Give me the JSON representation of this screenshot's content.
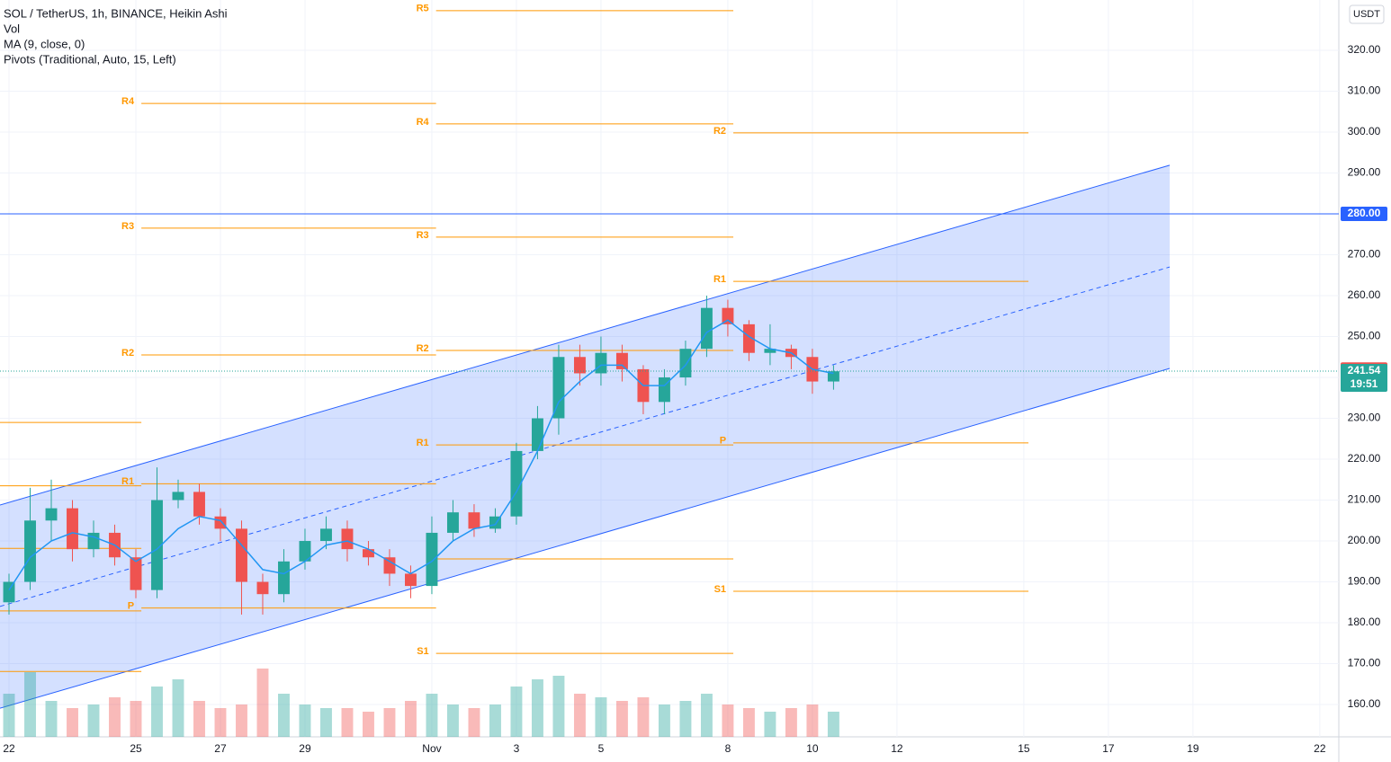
{
  "chart_data": {
    "type": "candlestick",
    "title": "SOL / TetherUS, 1h, BINANCE, Heikin Ashi",
    "indicators": [
      "Vol",
      "MA (9, close, 0)",
      "Pivots (Traditional, Auto, 15, Left)"
    ],
    "y_axis_unit": "USDT",
    "grid": true,
    "up_color": "#26a69a",
    "down_color": "#ef5350",
    "ma_color": "#2196f3",
    "pivot_color": "#ff9800",
    "channel_color": "#2962ff",
    "xlim": [
      -0.213,
      31.45
    ],
    "ylim": [
      152.1,
      332.3
    ],
    "xticks": [
      {
        "value": 0,
        "label": "22"
      },
      {
        "value": 3,
        "label": "25"
      },
      {
        "value": 5,
        "label": "27"
      },
      {
        "value": 7,
        "label": "29"
      },
      {
        "value": 10,
        "label": "Nov"
      },
      {
        "value": 12,
        "label": "3"
      },
      {
        "value": 14,
        "label": "5"
      },
      {
        "value": 17,
        "label": "8"
      },
      {
        "value": 19,
        "label": "10"
      },
      {
        "value": 21,
        "label": "12"
      },
      {
        "value": 24,
        "label": "15"
      },
      {
        "value": 26,
        "label": "17"
      },
      {
        "value": 28,
        "label": "19"
      },
      {
        "value": 31,
        "label": "22"
      }
    ],
    "yticks": [
      {
        "value": 160,
        "label": "160.00"
      },
      {
        "value": 170,
        "label": "170.00"
      },
      {
        "value": 180,
        "label": "180.00"
      },
      {
        "value": 190,
        "label": "190.00"
      },
      {
        "value": 200,
        "label": "200.00"
      },
      {
        "value": 210,
        "label": "210.00"
      },
      {
        "value": 220,
        "label": "220.00"
      },
      {
        "value": 230,
        "label": "230.00"
      },
      {
        "value": 240,
        "label": "240.00"
      },
      {
        "value": 250,
        "label": "250.00"
      },
      {
        "value": 260,
        "label": "260.00"
      },
      {
        "value": 270,
        "label": "270.00"
      },
      {
        "value": 280,
        "label": "280.00"
      },
      {
        "value": 290,
        "label": "290.00"
      },
      {
        "value": 300,
        "label": "300.00"
      },
      {
        "value": 310,
        "label": "310.00"
      },
      {
        "value": 320,
        "label": "320.00"
      }
    ],
    "candles": {
      "x": [
        0,
        0.5,
        1,
        1.5,
        2,
        2.5,
        3,
        3.5,
        4,
        4.5,
        5,
        5.5,
        6,
        6.5,
        7,
        7.5,
        8,
        8.5,
        9,
        9.5,
        10,
        10.5,
        11,
        11.5,
        12,
        12.5,
        13,
        13.5,
        14,
        14.5,
        15,
        15.5,
        16,
        16.5,
        17,
        17.5,
        18,
        18.5,
        19,
        19.5
      ],
      "open": [
        185,
        190,
        205,
        208,
        198,
        202,
        196,
        188,
        210,
        212,
        206,
        203,
        190,
        187,
        195,
        200,
        203,
        198,
        196,
        192,
        189,
        202,
        207,
        203,
        206,
        222,
        230,
        245,
        241,
        246,
        242,
        234,
        240,
        247,
        257,
        253,
        246,
        247,
        245,
        239
      ],
      "high": [
        192,
        213,
        215,
        210,
        205,
        204,
        198,
        218,
        215,
        214,
        208,
        205,
        192,
        198,
        203,
        206,
        205,
        200,
        198,
        194,
        206,
        210,
        209,
        208,
        224,
        233,
        248,
        248,
        250,
        248,
        243,
        242,
        249,
        260,
        259,
        254,
        253,
        248,
        247,
        243
      ],
      "low": [
        182,
        188,
        200,
        195,
        196,
        194,
        186,
        186,
        208,
        204,
        200,
        182,
        182,
        185,
        193,
        198,
        195,
        194,
        189,
        186,
        187,
        200,
        201,
        202,
        204,
        220,
        226,
        238,
        238,
        239,
        231,
        231,
        238,
        245,
        250,
        244,
        243,
        242,
        236,
        237
      ],
      "close": [
        190,
        205,
        208,
        198,
        202,
        196,
        188,
        210,
        212,
        206,
        203,
        190,
        187,
        195,
        200,
        203,
        198,
        196,
        192,
        189,
        202,
        207,
        203,
        206,
        222,
        230,
        245,
        241,
        246,
        242,
        234,
        240,
        247,
        257,
        253,
        246,
        247,
        245,
        239,
        241.5
      ],
      "volume": [
        60,
        90,
        50,
        40,
        45,
        55,
        50,
        70,
        80,
        50,
        40,
        45,
        95,
        60,
        45,
        40,
        40,
        35,
        40,
        50,
        60,
        45,
        40,
        45,
        70,
        80,
        85,
        60,
        55,
        50,
        55,
        45,
        50,
        60,
        45,
        40,
        35,
        40,
        45,
        35
      ],
      "ma": [
        188,
        196,
        200,
        202,
        201,
        199,
        195,
        198,
        203,
        206,
        205,
        199,
        193,
        192,
        195,
        199,
        200,
        198,
        195,
        192,
        195,
        200,
        203,
        204,
        212,
        222,
        234,
        239,
        243,
        243,
        238,
        238,
        243,
        251,
        254,
        250,
        247,
        246,
        242,
        241
      ]
    },
    "pivots": [
      {
        "start": -0.213,
        "end": 3.13,
        "levels": [
          {
            "value": 229
          },
          {
            "value": 213.5
          },
          {
            "value": 198.2
          },
          {
            "value": 182.9
          },
          {
            "value": 168.1
          }
        ]
      },
      {
        "start": 3.13,
        "end": 10.1,
        "levels": [
          {
            "label": "R4",
            "value": 307
          },
          {
            "label": "R3",
            "value": 276.5
          },
          {
            "label": "R2",
            "value": 245.5
          },
          {
            "label": "R1",
            "value": 214
          },
          {
            "label": "P",
            "value": 183.6
          }
        ]
      },
      {
        "start": 10.1,
        "end": 17.13,
        "levels": [
          {
            "label": "R5",
            "value": 329.7
          },
          {
            "label": "R4",
            "value": 302
          },
          {
            "label": "R3",
            "value": 274.3
          },
          {
            "label": "R2",
            "value": 246.6
          },
          {
            "label": "R1",
            "value": 223.5
          },
          {
            "value": 195.6
          },
          {
            "label": "S1",
            "value": 172.5
          }
        ]
      },
      {
        "start": 17.13,
        "end": 24.11,
        "levels": [
          {
            "label": "R2",
            "value": 299.8
          },
          {
            "label": "R1",
            "value": 263.5
          },
          {
            "label": "P",
            "value": 224
          },
          {
            "label": "S1",
            "value": 187.7
          }
        ]
      }
    ],
    "channel": {
      "x": [
        -0.213,
        27.45
      ],
      "upper": [
        208.8,
        291.9
      ],
      "middle": [
        184,
        267
      ],
      "lower": [
        159.1,
        242.2
      ]
    },
    "horizontal_line": {
      "value": 280,
      "label": "280.00"
    },
    "ma_last": 241.92,
    "last_price": 241.54,
    "countdown": "19:51"
  }
}
